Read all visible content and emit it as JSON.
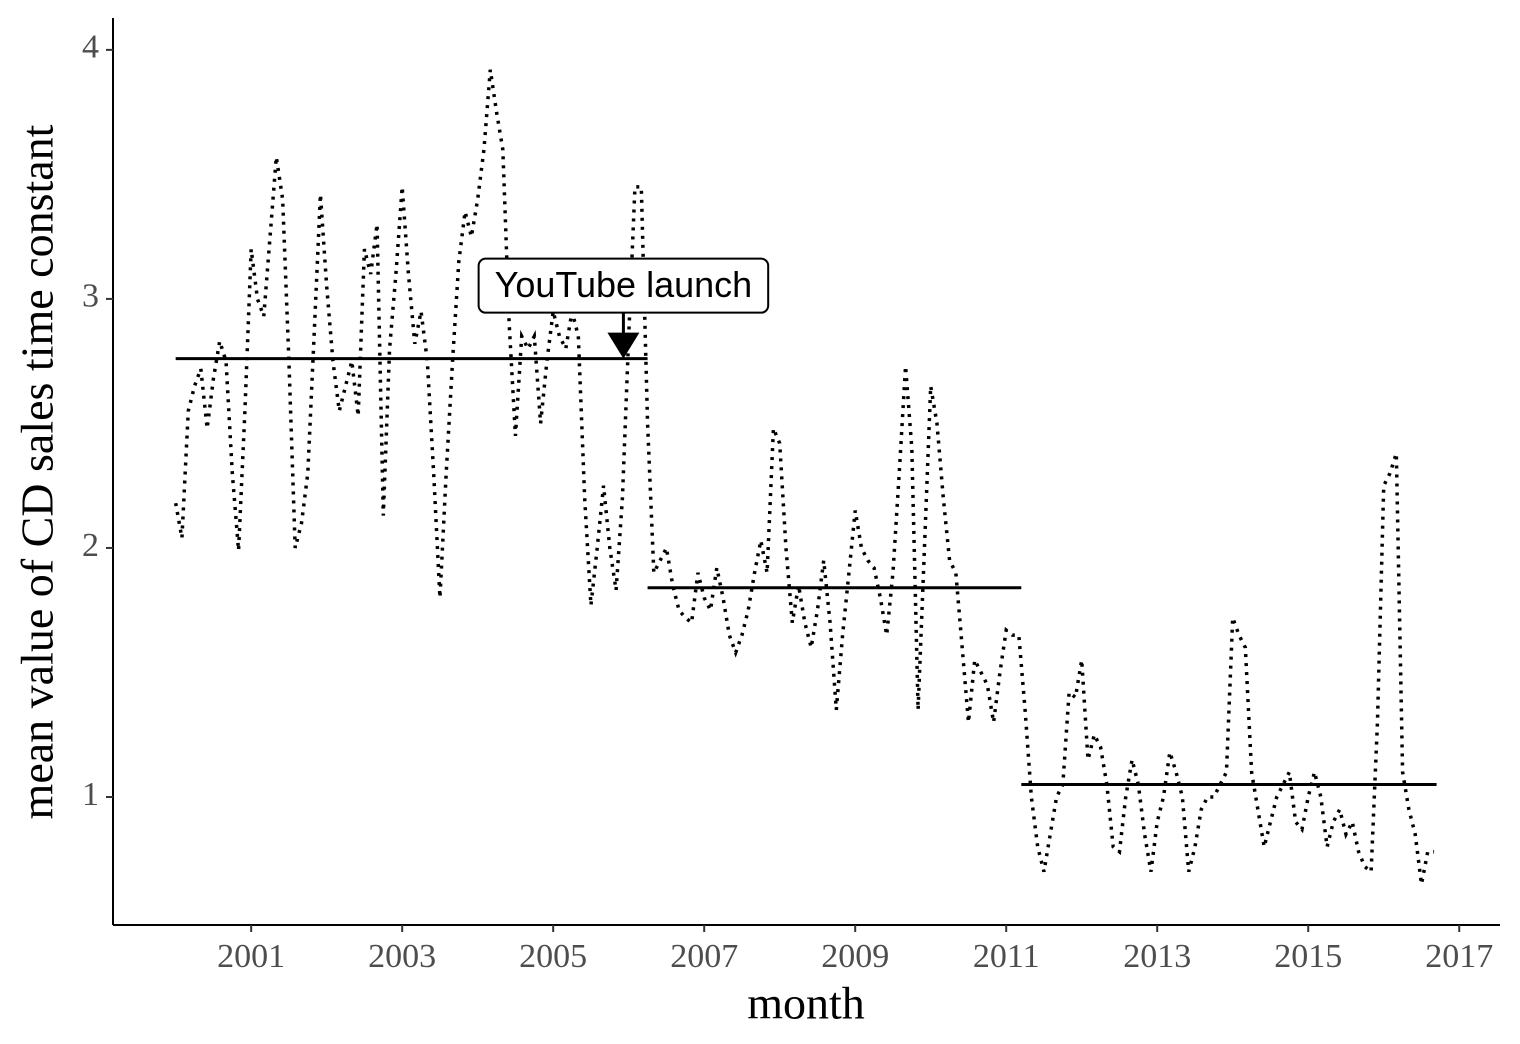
{
  "chart_data": {
    "type": "line",
    "x_label": "month",
    "y_label": "mean value of CD sales time constant",
    "xlim": [
      1999.17,
      2017.54
    ],
    "ylim": [
      0.486,
      4.128
    ],
    "xticks": [
      2001,
      2003,
      2005,
      2007,
      2009,
      2011,
      2013,
      2015,
      2017
    ],
    "yticks": [
      1,
      2,
      3,
      4
    ],
    "color": "#000000",
    "x": [
      2000.0,
      2000.083,
      2000.167,
      2000.25,
      2000.333,
      2000.417,
      2000.5,
      2000.583,
      2000.667,
      2000.75,
      2000.833,
      2000.917,
      2001.0,
      2001.083,
      2001.167,
      2001.25,
      2001.333,
      2001.417,
      2001.5,
      2001.583,
      2001.667,
      2001.75,
      2001.833,
      2001.917,
      2002.0,
      2002.083,
      2002.167,
      2002.25,
      2002.333,
      2002.417,
      2002.5,
      2002.583,
      2002.667,
      2002.75,
      2002.833,
      2002.917,
      2003.0,
      2003.083,
      2003.167,
      2003.25,
      2003.333,
      2003.417,
      2003.5,
      2003.583,
      2003.667,
      2003.75,
      2003.833,
      2003.917,
      2004.0,
      2004.083,
      2004.167,
      2004.25,
      2004.333,
      2004.417,
      2004.5,
      2004.583,
      2004.667,
      2004.75,
      2004.833,
      2004.917,
      2005.0,
      2005.083,
      2005.167,
      2005.25,
      2005.333,
      2005.417,
      2005.5,
      2005.583,
      2005.667,
      2005.75,
      2005.833,
      2005.917,
      2006.0,
      2006.083,
      2006.167,
      2006.25,
      2006.333,
      2006.417,
      2006.5,
      2006.583,
      2006.667,
      2006.75,
      2006.833,
      2006.917,
      2007.0,
      2007.083,
      2007.167,
      2007.25,
      2007.333,
      2007.417,
      2007.5,
      2007.583,
      2007.667,
      2007.75,
      2007.833,
      2007.917,
      2008.0,
      2008.083,
      2008.167,
      2008.25,
      2008.333,
      2008.417,
      2008.5,
      2008.583,
      2008.667,
      2008.75,
      2008.833,
      2008.917,
      2009.0,
      2009.083,
      2009.167,
      2009.25,
      2009.333,
      2009.417,
      2009.5,
      2009.583,
      2009.667,
      2009.75,
      2009.833,
      2009.917,
      2010.0,
      2010.083,
      2010.167,
      2010.25,
      2010.333,
      2010.417,
      2010.5,
      2010.583,
      2010.667,
      2010.75,
      2010.833,
      2010.917,
      2011.0,
      2011.083,
      2011.167,
      2011.25,
      2011.333,
      2011.417,
      2011.5,
      2011.583,
      2011.667,
      2011.75,
      2011.833,
      2011.917,
      2012.0,
      2012.083,
      2012.167,
      2012.25,
      2012.333,
      2012.417,
      2012.5,
      2012.583,
      2012.667,
      2012.75,
      2012.833,
      2012.917,
      2013.0,
      2013.083,
      2013.167,
      2013.25,
      2013.333,
      2013.417,
      2013.5,
      2013.583,
      2013.667,
      2013.75,
      2013.833,
      2013.917,
      2014.0,
      2014.083,
      2014.167,
      2014.25,
      2014.333,
      2014.417,
      2014.5,
      2014.583,
      2014.667,
      2014.75,
      2014.833,
      2014.917,
      2015.0,
      2015.083,
      2015.167,
      2015.25,
      2015.333,
      2015.417,
      2015.5,
      2015.583,
      2015.667,
      2015.75,
      2015.833,
      2015.917,
      2016.0,
      2016.083,
      2016.167,
      2016.25,
      2016.333,
      2016.417,
      2016.5,
      2016.583,
      2016.667
    ],
    "values": [
      2.18,
      2.04,
      2.55,
      2.65,
      2.72,
      2.48,
      2.68,
      2.83,
      2.75,
      2.3,
      1.99,
      2.55,
      3.2,
      3.0,
      2.93,
      3.25,
      3.57,
      3.4,
      2.75,
      2.0,
      2.1,
      2.3,
      2.85,
      3.42,
      3.05,
      2.75,
      2.55,
      2.65,
      2.75,
      2.53,
      3.2,
      3.1,
      3.3,
      2.13,
      2.8,
      3.1,
      3.45,
      3.1,
      2.82,
      2.95,
      2.75,
      2.3,
      1.8,
      2.3,
      2.75,
      3.15,
      3.35,
      3.25,
      3.4,
      3.6,
      3.92,
      3.75,
      3.6,
      2.9,
      2.45,
      2.85,
      2.8,
      2.85,
      2.5,
      2.75,
      2.95,
      2.85,
      2.8,
      2.95,
      2.85,
      2.2,
      1.77,
      2.0,
      2.25,
      2.0,
      1.83,
      2.2,
      2.85,
      3.45,
      3.45,
      2.5,
      1.9,
      1.95,
      2.0,
      1.85,
      1.75,
      1.72,
      1.7,
      1.9,
      1.8,
      1.75,
      1.92,
      1.8,
      1.65,
      1.58,
      1.65,
      1.75,
      1.9,
      2.03,
      1.9,
      2.48,
      2.42,
      2.0,
      1.7,
      1.85,
      1.7,
      1.6,
      1.75,
      1.95,
      1.7,
      1.35,
      1.65,
      1.9,
      2.15,
      2.0,
      1.95,
      1.92,
      1.8,
      1.65,
      1.9,
      2.3,
      2.73,
      2.4,
      1.35,
      2.0,
      2.65,
      2.5,
      2.2,
      1.95,
      1.9,
      1.6,
      1.3,
      1.55,
      1.5,
      1.45,
      1.3,
      1.5,
      1.67,
      1.65,
      1.65,
      1.35,
      1.0,
      0.8,
      0.7,
      0.85,
      1.0,
      1.05,
      1.42,
      1.4,
      1.55,
      1.15,
      1.25,
      1.2,
      1.05,
      0.8,
      0.78,
      1.0,
      1.15,
      1.05,
      0.85,
      0.7,
      0.9,
      1.0,
      1.18,
      1.1,
      1.0,
      0.7,
      0.8,
      0.95,
      1.0,
      1.0,
      1.05,
      1.1,
      1.72,
      1.65,
      1.6,
      1.1,
      0.95,
      0.8,
      0.9,
      1.0,
      1.05,
      1.1,
      0.9,
      0.87,
      1.0,
      1.1,
      1.0,
      0.8,
      0.9,
      0.95,
      0.85,
      0.9,
      0.78,
      0.72,
      0.7,
      1.3,
      2.25,
      2.3,
      2.38,
      1.1,
      0.95,
      0.85,
      0.65,
      0.78,
      0.78
    ],
    "segments": [
      {
        "x0": 2000.0,
        "x1": 2006.25,
        "y": 2.76
      },
      {
        "x0": 2006.25,
        "x1": 2011.2,
        "y": 1.84
      },
      {
        "x0": 2011.2,
        "x1": 2016.7,
        "y": 1.05
      }
    ],
    "annotation": {
      "text": "YouTube launch",
      "x": 2005.93,
      "y": 2.76
    }
  }
}
